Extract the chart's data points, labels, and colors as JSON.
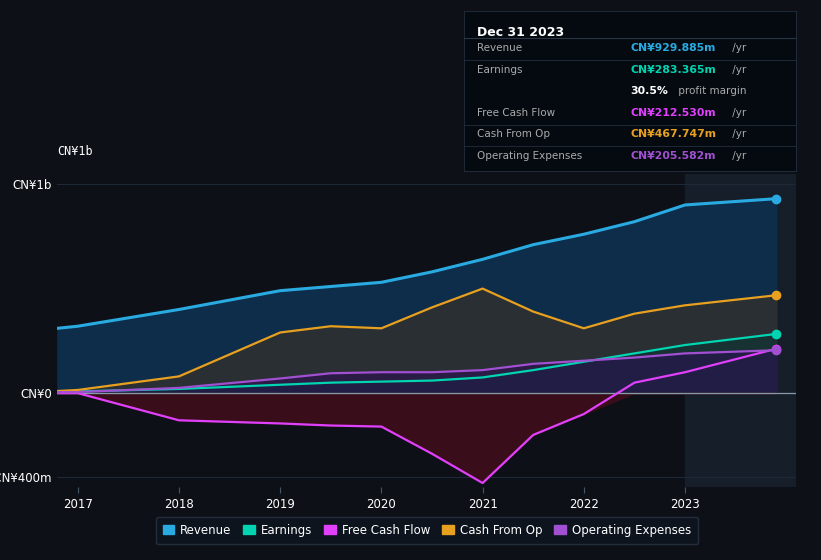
{
  "background_color": "#0d1117",
  "plot_bg_color": "#0d1117",
  "years": [
    2016.8,
    2017,
    2018,
    2019,
    2019.5,
    2020,
    2020.5,
    2021,
    2021.5,
    2022,
    2022.5,
    2023,
    2023.9
  ],
  "revenue": [
    310,
    320,
    400,
    490,
    510,
    530,
    580,
    640,
    710,
    760,
    820,
    900,
    930
  ],
  "earnings": [
    5,
    8,
    20,
    40,
    50,
    55,
    60,
    75,
    110,
    150,
    190,
    230,
    283
  ],
  "free_cash_flow": [
    0,
    0,
    -130,
    -145,
    -155,
    -160,
    -290,
    -430,
    -200,
    -100,
    50,
    100,
    212
  ],
  "cash_from_op": [
    10,
    15,
    80,
    290,
    320,
    310,
    410,
    500,
    390,
    310,
    380,
    420,
    468
  ],
  "operating_expenses": [
    5,
    5,
    25,
    70,
    95,
    100,
    100,
    110,
    140,
    155,
    170,
    190,
    205
  ],
  "revenue_color": "#29abe2",
  "earnings_color": "#00d4b0",
  "free_cash_flow_color": "#e040fb",
  "cash_from_op_color": "#e8a020",
  "operating_expenses_color": "#a050d0",
  "revenue_fill_color": "#0d2d4a",
  "earnings_fill_color": "#0d3535",
  "cash_from_op_fill_color": "#303030",
  "free_cash_flow_fill_color": "#3a0d1a",
  "operating_expenses_fill_color": "#2a1050",
  "ylim": [
    -450,
    1050
  ],
  "xlim": [
    2016.8,
    2024.1
  ],
  "ytick_labels": [
    "-CN¥400m",
    "CN¥0",
    "CN¥1b"
  ],
  "ytick_values": [
    -400,
    0,
    1000
  ],
  "xticks": [
    2017,
    2018,
    2019,
    2020,
    2021,
    2022,
    2023
  ],
  "grid_color": "#1e2a38",
  "zero_line_color": "#8899aa",
  "highlight_x_start": 2023.0,
  "highlight_x_end": 2024.1,
  "highlight_color": "#161e2a",
  "title": "Dec 31 2023",
  "table_data": [
    {
      "label": "Revenue",
      "value": "CN¥929.885m",
      "suffix": " /yr",
      "value_color": "#29abe2"
    },
    {
      "label": "Earnings",
      "value": "CN¥283.365m",
      "suffix": " /yr",
      "value_color": "#00d4b0"
    },
    {
      "label": "",
      "value": "30.5%",
      "suffix": " profit margin",
      "value_color": "#ffffff"
    },
    {
      "label": "Free Cash Flow",
      "value": "CN¥212.530m",
      "suffix": " /yr",
      "value_color": "#e040fb"
    },
    {
      "label": "Cash From Op",
      "value": "CN¥467.747m",
      "suffix": " /yr",
      "value_color": "#e8a020"
    },
    {
      "label": "Operating Expenses",
      "value": "CN¥205.582m",
      "suffix": " /yr",
      "value_color": "#a050d0"
    }
  ],
  "legend_entries": [
    {
      "label": "Revenue",
      "color": "#29abe2"
    },
    {
      "label": "Earnings",
      "color": "#00d4b0"
    },
    {
      "label": "Free Cash Flow",
      "color": "#e040fb"
    },
    {
      "label": "Cash From Op",
      "color": "#e8a020"
    },
    {
      "label": "Operating Expenses",
      "color": "#a050d0"
    }
  ]
}
